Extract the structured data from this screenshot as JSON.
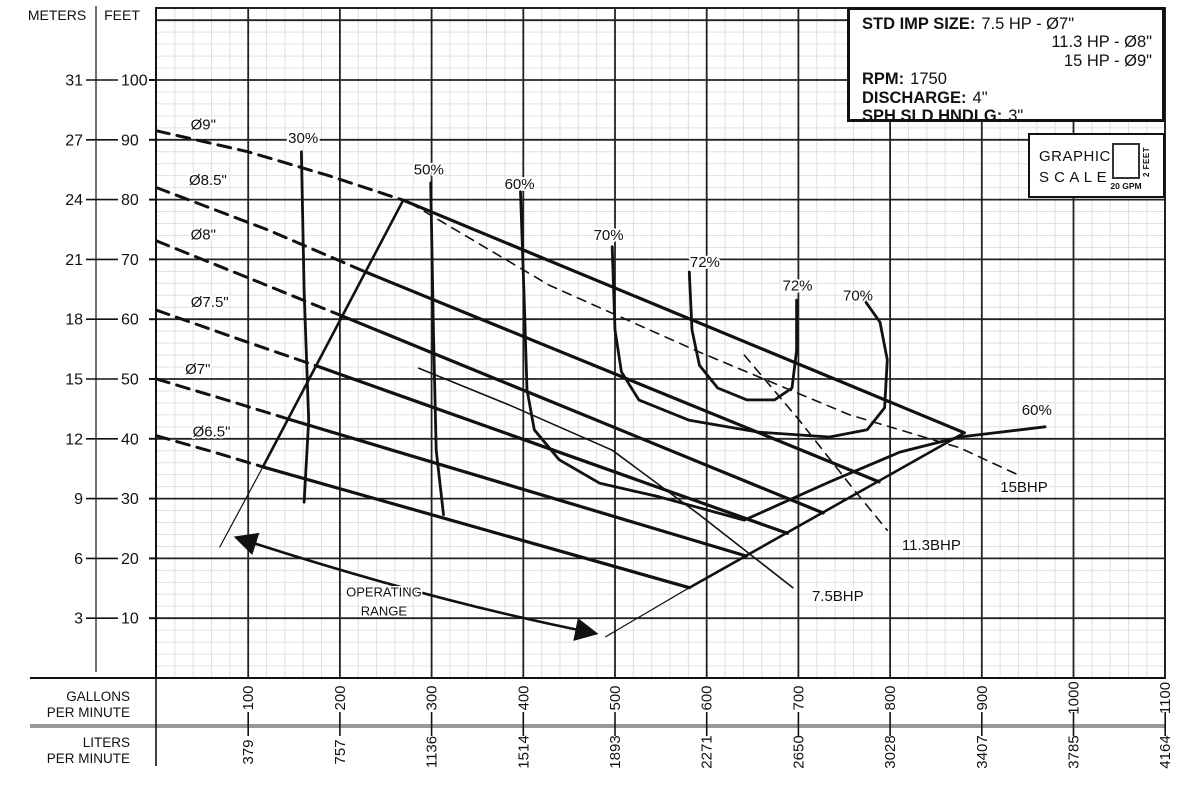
{
  "info_box": {
    "std_imp_size_label": "STD IMP SIZE:",
    "imp_line1": "7.5 HP - Ø7\"",
    "imp_line2": "11.3 HP - Ø8\"",
    "imp_line3": "15 HP - Ø9\"",
    "rpm_label": "RPM:",
    "rpm_value": "1750",
    "discharge_label": "DISCHARGE:",
    "discharge_value": "4\"",
    "sph_label": "SPH SLD HNDLG:",
    "sph_value": "3\""
  },
  "graphic_scale": {
    "line1": "GRAPHIC",
    "line2": "S C A L E",
    "x_unit": "20 GPM",
    "y_unit": "2 FEET"
  },
  "axes": {
    "meters_header": "METERS",
    "feet_header": "FEET",
    "gallons_line1": "GALLONS",
    "gallons_line2": "PER MINUTE",
    "liters_line1": "LITERS",
    "liters_line2": "PER MINUTE"
  },
  "colors": {
    "ink": "#111111",
    "grid_minor": "#e0e0e0",
    "grid_major": "#222222",
    "separator": "#999999",
    "background": "#ffffff"
  },
  "chart_data": {
    "type": "line",
    "description": "Centrifugal pump performance chart: head (feet/meters) vs flow (GPM/LPM) with impeller diameter curves, efficiency contours, brake-horsepower lines and operating range",
    "x_axis": {
      "unit_primary": "GALLONS PER MINUTE",
      "unit_secondary": "LITERS PER MINUTE",
      "min": 0,
      "max": 1100,
      "major_step": 100,
      "minor_step": 20,
      "ticks": [
        {
          "gpm": "100",
          "lpm": "379"
        },
        {
          "gpm": "200",
          "lpm": "757"
        },
        {
          "gpm": "300",
          "lpm": "1136"
        },
        {
          "gpm": "400",
          "lpm": "1514"
        },
        {
          "gpm": "500",
          "lpm": "1893"
        },
        {
          "gpm": "600",
          "lpm": "2271"
        },
        {
          "gpm": "700",
          "lpm": "2650"
        },
        {
          "gpm": "800",
          "lpm": "3028"
        },
        {
          "gpm": "900",
          "lpm": "3407"
        },
        {
          "gpm": "1000",
          "lpm": "3785"
        },
        {
          "gpm": "1100",
          "lpm": "4164"
        }
      ]
    },
    "y_axis": {
      "unit_primary": "FEET",
      "unit_secondary": "METERS",
      "min": 0,
      "max": 112,
      "major_step": 10,
      "minor_step": 2,
      "ticks": [
        {
          "feet": "100",
          "meters": "31"
        },
        {
          "feet": "90",
          "meters": "27"
        },
        {
          "feet": "80",
          "meters": "24"
        },
        {
          "feet": "70",
          "meters": "21"
        },
        {
          "feet": "60",
          "meters": "18"
        },
        {
          "feet": "50",
          "meters": "15"
        },
        {
          "feet": "40",
          "meters": "12"
        },
        {
          "feet": "30",
          "meters": "9"
        },
        {
          "feet": "20",
          "meters": "6"
        },
        {
          "feet": "10",
          "meters": "3"
        }
      ]
    },
    "impeller_curves": [
      {
        "id": "9in",
        "label": "Ø9\"",
        "label_at": [
          51,
          92.6
        ],
        "dashed": [
          [
            0,
            91.5
          ],
          [
            100,
            88.0
          ],
          [
            188,
            84.0
          ],
          [
            269,
            79.9
          ]
        ],
        "solid": [
          [
            269,
            79.9
          ],
          [
            881,
            41.0
          ]
        ]
      },
      {
        "id": "8-5in",
        "label": "Ø8.5\"",
        "label_at": [
          56,
          83.3
        ],
        "dashed": [
          [
            0,
            82.0
          ],
          [
            122,
            74.9
          ],
          [
            228,
            67.9
          ]
        ],
        "solid": [
          [
            228,
            67.9
          ],
          [
            788,
            32.8
          ]
        ]
      },
      {
        "id": "8in",
        "label": "Ø8\"",
        "label_at": [
          51,
          74.2
        ],
        "dashed": [
          [
            0,
            73.1
          ],
          [
            105,
            66.6
          ],
          [
            203,
            60.5
          ]
        ],
        "solid": [
          [
            203,
            60.5
          ],
          [
            727,
            27.6
          ]
        ]
      },
      {
        "id": "7-5in",
        "label": "Ø7.5\"",
        "label_at": [
          58,
          62.9
        ],
        "dashed": [
          [
            0,
            61.5
          ],
          [
            89,
            56.7
          ],
          [
            174,
            52.2
          ]
        ],
        "solid": [
          [
            174,
            52.2
          ],
          [
            688,
            24.2
          ]
        ]
      },
      {
        "id": "7in",
        "label": "Ø7\"",
        "label_at": [
          45,
          51.7
        ],
        "dashed": [
          [
            0,
            50.0
          ],
          [
            76,
            46.5
          ],
          [
            144,
            43.3
          ]
        ],
        "solid": [
          [
            144,
            43.3
          ],
          [
            643,
            20.4
          ]
        ]
      },
      {
        "id": "6-5in",
        "label": "Ø6.5\"",
        "label_at": [
          60,
          41.2
        ],
        "dashed": [
          [
            0,
            40.5
          ],
          [
            62,
            37.8
          ],
          [
            116,
            35.3
          ]
        ],
        "solid": [
          [
            116,
            35.3
          ],
          [
            581,
            15.1
          ]
        ]
      }
    ],
    "efficiency_contours": [
      {
        "id": "eff-30",
        "label": "30%",
        "label_at": [
          160,
          90.3
        ],
        "points": [
          [
            158,
            88.0
          ],
          [
            161,
            64.9
          ],
          [
            166,
            43.1
          ],
          [
            161,
            29.4
          ]
        ]
      },
      {
        "id": "eff-50",
        "label": "50%",
        "label_at": [
          297,
          85.0
        ],
        "points": [
          [
            299,
            82.8
          ],
          [
            302,
            58.2
          ],
          [
            305,
            38.1
          ],
          [
            313,
            27.3
          ]
        ]
      },
      {
        "id": "eff-60",
        "label": "60%",
        "label_at": [
          396,
          82.6
        ],
        "label2": "60%",
        "label2_at": [
          960,
          44.8
        ],
        "points": [
          [
            397,
            81.3
          ],
          [
            401,
            63.2
          ],
          [
            404,
            48.2
          ],
          [
            412,
            41.5
          ],
          [
            439,
            36.5
          ],
          [
            483,
            32.6
          ],
          [
            548,
            30.3
          ],
          [
            641,
            26.4
          ],
          [
            734,
            32.8
          ],
          [
            811,
            37.8
          ],
          [
            876,
            40.3
          ],
          [
            969,
            42.0
          ]
        ]
      },
      {
        "id": "eff-70",
        "label": "70%",
        "label_at": [
          493,
          74.1
        ],
        "label2": "70%",
        "label2_at": [
          765,
          64.0
        ],
        "points": [
          [
            497,
            72.1
          ],
          [
            500,
            58.2
          ],
          [
            507,
            51.2
          ],
          [
            526,
            46.5
          ],
          [
            581,
            43.1
          ],
          [
            657,
            41.1
          ],
          [
            734,
            40.3
          ],
          [
            775,
            41.5
          ],
          [
            794,
            45.2
          ],
          [
            797,
            53.2
          ],
          [
            789,
            59.5
          ],
          [
            772,
            63.2
          ]
        ]
      },
      {
        "id": "eff-72",
        "label": "72%",
        "label_at": [
          598,
          69.6
        ],
        "label2": "72%",
        "label2_at": [
          699,
          65.6
        ],
        "points": [
          [
            581,
            67.9
          ],
          [
            584,
            58.2
          ],
          [
            592,
            52.3
          ],
          [
            612,
            48.5
          ],
          [
            644,
            46.5
          ],
          [
            674,
            46.5
          ],
          [
            693,
            48.5
          ],
          [
            698,
            54.8
          ],
          [
            698,
            63.2
          ]
        ]
      }
    ],
    "power_lines": [
      {
        "id": "7-5bhp",
        "label": "7.5BHP",
        "label_at": [
          743,
          13.7
        ],
        "style": "solid",
        "points": [
          [
            286,
            51.8
          ],
          [
            384,
            45.7
          ],
          [
            497,
            38.1
          ],
          [
            592,
            27.3
          ],
          [
            694,
            15.1
          ]
        ]
      },
      {
        "id": "11-3bhp",
        "label": "11.3BHP",
        "label_at": [
          845,
          22.2
        ],
        "style": "dashed",
        "points": [
          [
            641,
            54.0
          ],
          [
            701,
            43.1
          ],
          [
            761,
            31.4
          ],
          [
            797,
            24.7
          ]
        ]
      },
      {
        "id": "15bhp",
        "label": "15BHP",
        "label_at": [
          946,
          31.9
        ],
        "style": "dashed",
        "points": [
          [
            277,
            79.4
          ],
          [
            428,
            65.7
          ],
          [
            592,
            54.5
          ],
          [
            756,
            44.0
          ],
          [
            876,
            38.5
          ],
          [
            942,
            33.8
          ]
        ]
      }
    ],
    "operating_range": {
      "label_line1": "OPERATING",
      "label_line2": "RANGE",
      "label_at": [
        248,
        14.5
      ],
      "min_flow_boundary": [
        [
          116,
          35.3
        ],
        [
          269,
          79.9
        ]
      ],
      "max_flow_boundary": [
        [
          881,
          41.0
        ],
        [
          581,
          15.1
        ]
      ],
      "min_flow_extension": [
        [
          116,
          35.3
        ],
        [
          69,
          21.9
        ]
      ],
      "max_flow_extension": [
        [
          581,
          15.1
        ],
        [
          490,
          6.9
        ]
      ],
      "arrow": {
        "from": [
          89,
          23.4
        ],
        "via": [
          297,
          13.0
        ],
        "to": [
          477,
          7.5
        ]
      }
    }
  }
}
